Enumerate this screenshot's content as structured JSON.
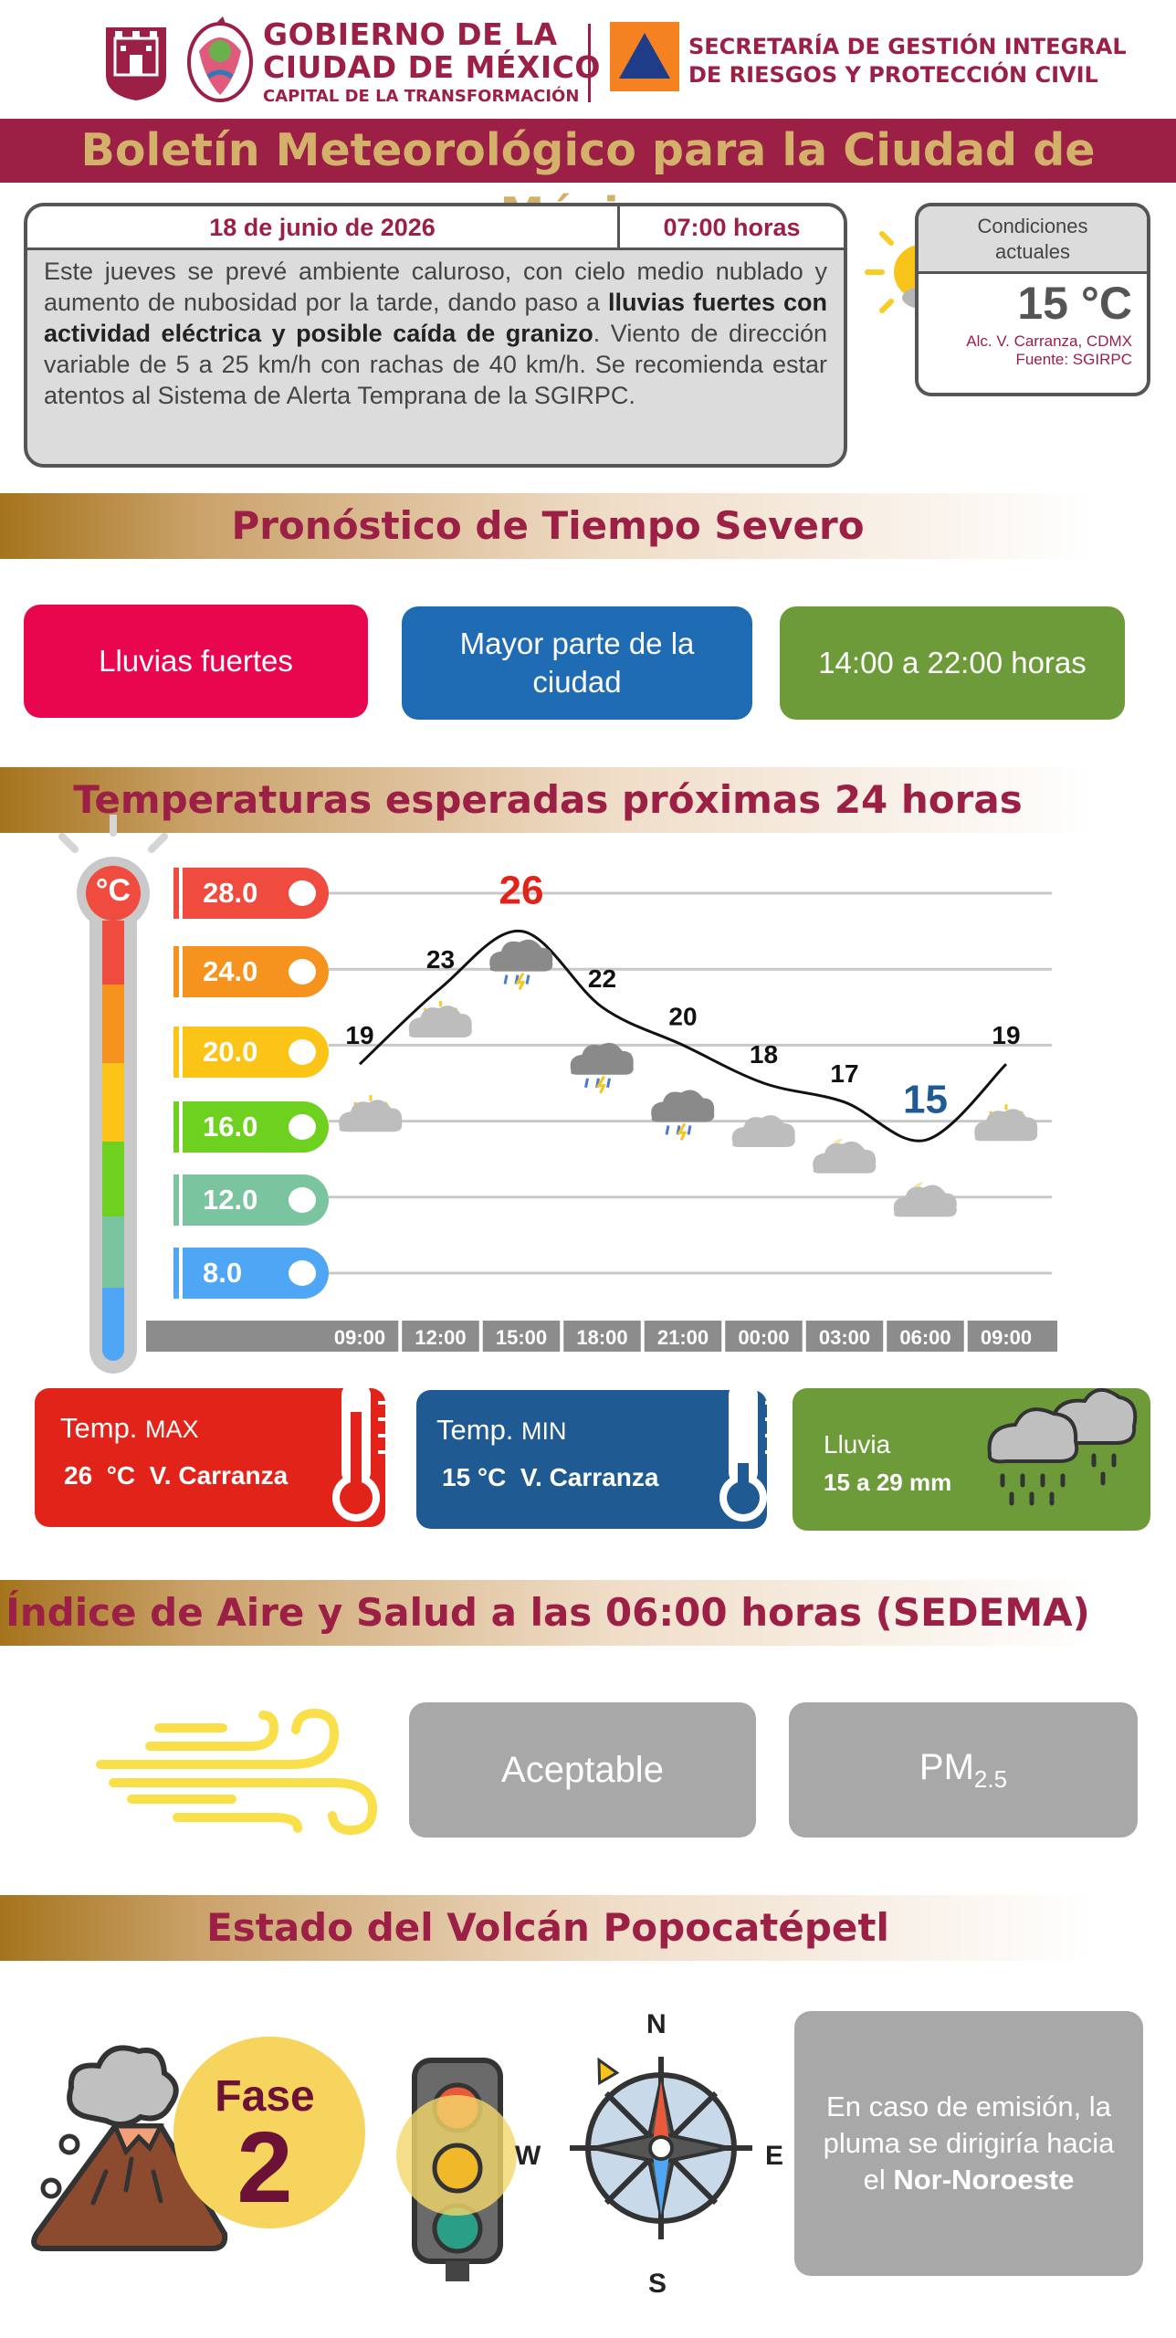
{
  "header": {
    "gov_line1": "GOBIERNO DE LA",
    "gov_line2": "CIUDAD DE MÉXICO",
    "gov_line3": "CAPITAL DE LA TRANSFORMACIÓN",
    "sec_line1": "SECRETARÍA DE GESTIÓN INTEGRAL",
    "sec_line2": "DE RIESGOS Y PROTECCIÓN CIVIL"
  },
  "title": "Boletín Meteorológico para la Ciudad de México",
  "bulletin": {
    "date": "18 de junio de 2026",
    "time": "07:00 horas",
    "text_1": "Este jueves se prevé ambiente caluroso, con cielo medio nublado y aumento de nubosidad por la tarde, dando paso a ",
    "text_bold": "lluvias fuertes con actividad eléctrica y posible caída de granizo",
    "text_2": ". Viento de dirección variable de 5 a 25 km/h con rachas de 40 km/h. Se recomienda estar atentos al Sistema de Alerta Temprana de la SGIRPC."
  },
  "current": {
    "title_line1": "Condiciones",
    "title_line2": "actuales",
    "temperature": "15 °C",
    "location": "Alc. V. Carranza, CDMX",
    "source": "Fuente: SGIRPC"
  },
  "severe": {
    "header": "Pronóstico de Tiempo Severo",
    "event": "Lluvias fuertes",
    "area_line1": "Mayor parte de la",
    "area_line2": "ciudad",
    "period": "14:00 a 22:00 horas",
    "colors": {
      "event": "#e8064f",
      "area": "#1f6cb5",
      "period": "#6e9b3a"
    }
  },
  "temps": {
    "header": "Temperaturas esperadas próximas 24 horas",
    "thermo_label": "°C",
    "scale": [
      {
        "label": "28.0",
        "color": "#ef4b3e"
      },
      {
        "label": "24.0",
        "color": "#f5931e"
      },
      {
        "label": "20.0",
        "color": "#fbc416"
      },
      {
        "label": "16.0",
        "color": "#6fd11f"
      },
      {
        "label": "12.0",
        "color": "#7ac4a0"
      },
      {
        "label": "8.0",
        "color": "#4ea6f4"
      }
    ]
  },
  "chart_data": {
    "type": "line",
    "x": [
      "09:00",
      "12:00",
      "15:00",
      "18:00",
      "21:00",
      "00:00",
      "03:00",
      "06:00",
      "09:00"
    ],
    "values": [
      19,
      23,
      26,
      22,
      20,
      18,
      17,
      15,
      19
    ],
    "icons": [
      "partly-cloudy-day-icon",
      "partly-cloudy-day-icon",
      "storm-cloud-icon",
      "storm-cloud-icon",
      "storm-cloud-icon",
      "cloud-icon",
      "partly-cloudy-night-icon",
      "partly-cloudy-night-icon",
      "partly-cloudy-day-icon"
    ],
    "ylim": [
      8,
      28
    ],
    "yticks": [
      8,
      12,
      16,
      20,
      24,
      28
    ],
    "max_color": "#e2231a",
    "min_color": "#1f5a92"
  },
  "stats": {
    "max_label": "Temp.",
    "max_suffix": "MAX",
    "max_value": "26  °C  V. Carranza",
    "min_label": "Temp.",
    "min_suffix": "MIN",
    "min_value": "15 °C  V. Carranza",
    "rain_label": "Lluvia",
    "rain_value": "15 a 29 mm"
  },
  "air": {
    "header": "Índice de Aire y Salud a las 06:00 horas (SEDEMA)",
    "quality": "Aceptable",
    "pollutant": "PM",
    "pollutant_sub": "2.5"
  },
  "volcano": {
    "header": "Estado del Volcán Popocatépetl",
    "phase_label": "Fase",
    "phase_number": "2",
    "compass_n": "N",
    "compass_s": "S",
    "compass_e": "E",
    "compass_w": "W",
    "plume_text": "En caso de emisión, la pluma se dirigiría hacia el ",
    "plume_dir": "Nor-Noroeste"
  }
}
